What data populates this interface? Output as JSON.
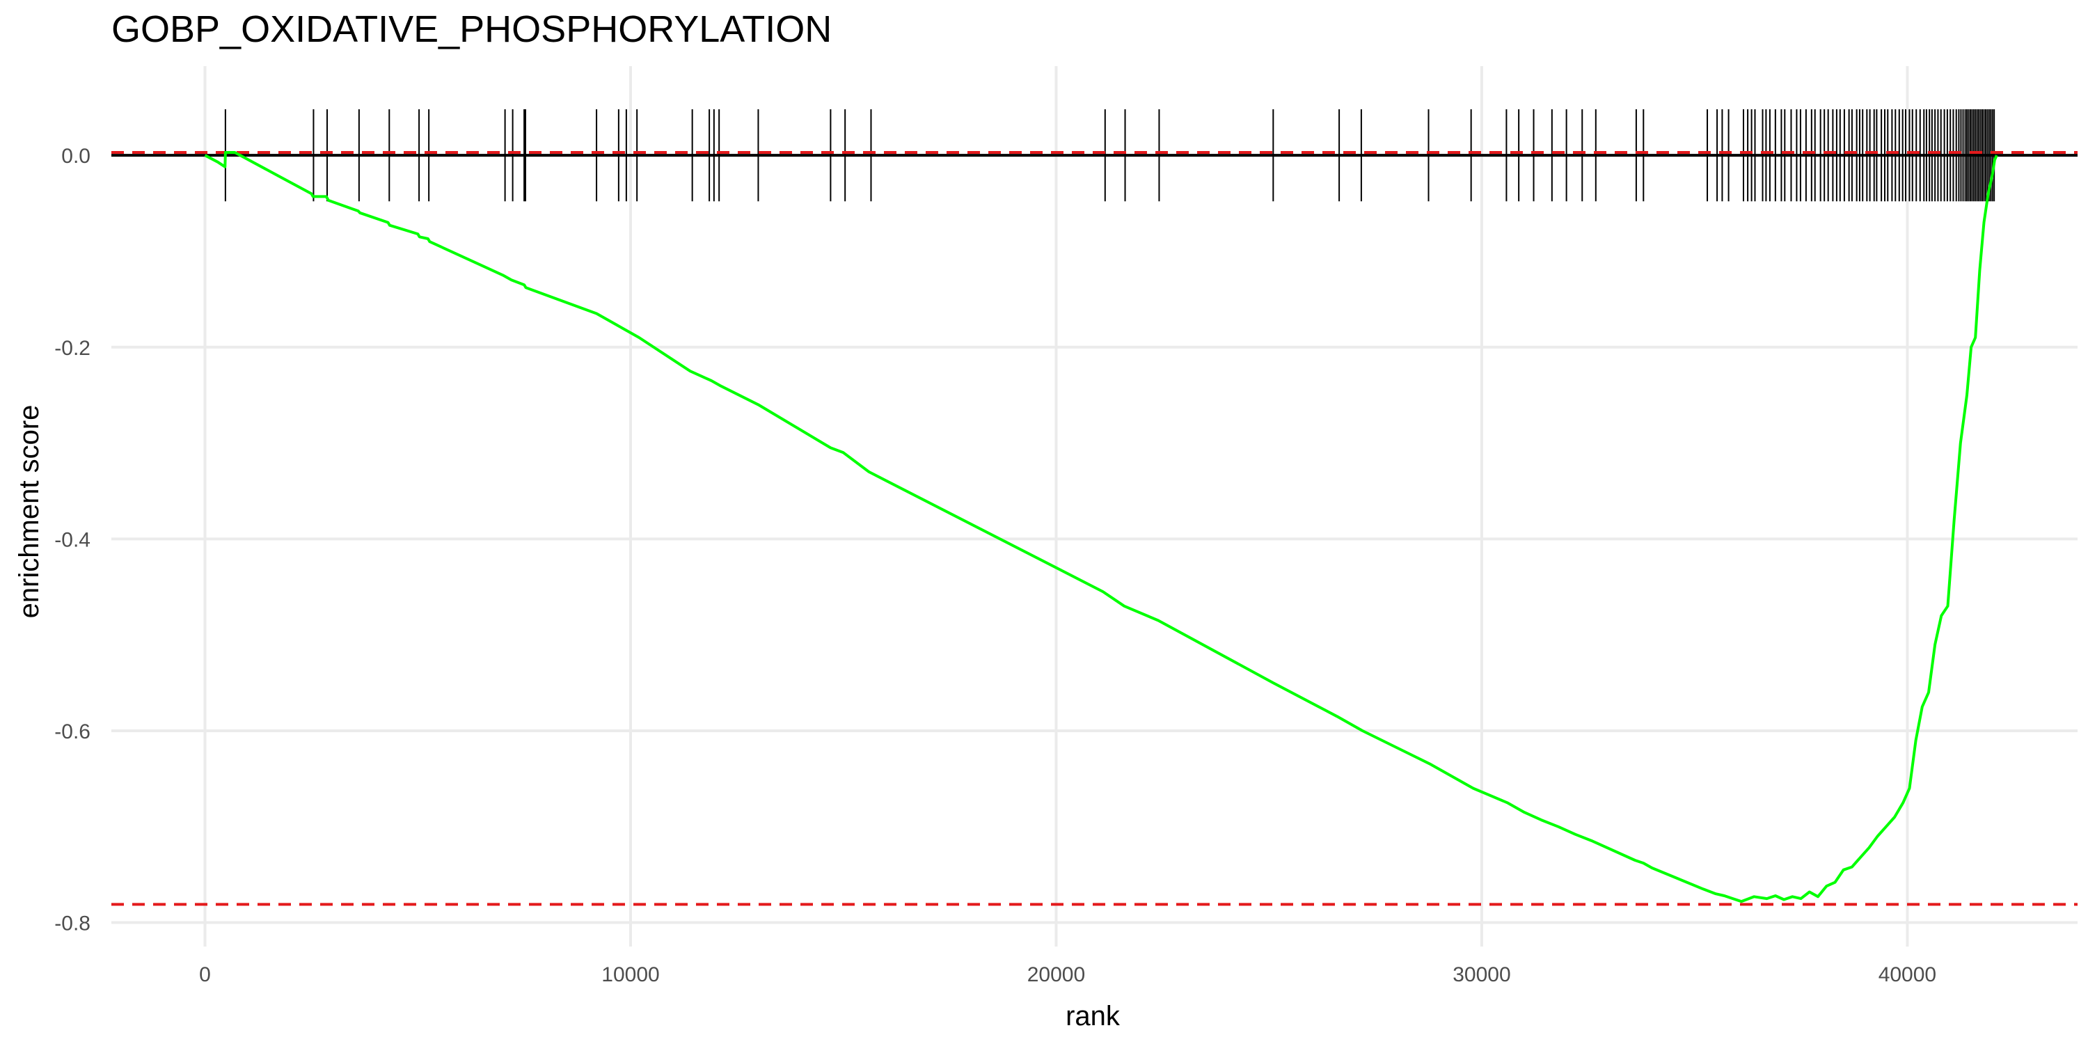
{
  "chart_data": {
    "type": "line",
    "title": "GOBP_OXIDATIVE_PHOSPHORYLATION",
    "xlabel": "rank",
    "ylabel": "enrichment score",
    "xlim": [
      -2200,
      44000
    ],
    "ylim": [
      -0.825,
      0.093
    ],
    "x_ticks": [
      0,
      10000,
      20000,
      30000,
      40000
    ],
    "x_tick_labels": [
      "0",
      "10000",
      "20000",
      "30000",
      "40000"
    ],
    "y_ticks": [
      0.0,
      -0.2,
      -0.4,
      -0.6,
      -0.8
    ],
    "y_tick_labels": [
      "0.0",
      "-0.2",
      "-0.4",
      "-0.6",
      "-0.8"
    ],
    "grid": true,
    "legend": "none",
    "series": [
      {
        "values_x": [
          0,
          300,
          470,
          480,
          700,
          2500,
          2540,
          2850,
          2900,
          3600,
          3640,
          4300,
          4340,
          5000,
          5040,
          5240,
          5280,
          7000,
          7200,
          7500,
          7540,
          9200,
          9800,
          10200,
          11400,
          11900,
          12100,
          13000,
          14700,
          15000,
          15600,
          21100,
          21600,
          22400,
          25100,
          26600,
          27200,
          28800,
          29800,
          30600,
          31000,
          31400,
          31800,
          32200,
          32600,
          33600,
          33800,
          34000,
          35200,
          35500,
          35700,
          35900,
          36100,
          36400,
          36700,
          36900,
          37100,
          37300,
          37500,
          37700,
          37900,
          38100,
          38300,
          38500,
          38700,
          38900,
          39100,
          39300,
          39500,
          39700,
          39900,
          40050,
          40200,
          40350,
          40500,
          40650,
          40800,
          40950,
          41100,
          41250,
          41400,
          41500,
          41600,
          41700,
          41800,
          41900,
          42000,
          42050,
          42100
        ],
        "values_y": [
          0.0,
          -0.007,
          -0.012,
          0.003,
          0.003,
          -0.04,
          -0.043,
          -0.043,
          -0.047,
          -0.058,
          -0.06,
          -0.07,
          -0.073,
          -0.082,
          -0.085,
          -0.087,
          -0.09,
          -0.125,
          -0.13,
          -0.135,
          -0.138,
          -0.165,
          -0.18,
          -0.19,
          -0.225,
          -0.235,
          -0.24,
          -0.26,
          -0.305,
          -0.31,
          -0.33,
          -0.455,
          -0.47,
          -0.485,
          -0.55,
          -0.585,
          -0.6,
          -0.635,
          -0.66,
          -0.675,
          -0.685,
          -0.693,
          -0.7,
          -0.708,
          -0.715,
          -0.735,
          -0.738,
          -0.743,
          -0.765,
          -0.77,
          -0.772,
          -0.775,
          -0.778,
          -0.773,
          -0.775,
          -0.772,
          -0.776,
          -0.773,
          -0.775,
          -0.768,
          -0.773,
          -0.762,
          -0.758,
          -0.745,
          -0.742,
          -0.732,
          -0.722,
          -0.71,
          -0.7,
          -0.69,
          -0.675,
          -0.66,
          -0.61,
          -0.575,
          -0.56,
          -0.51,
          -0.48,
          -0.47,
          -0.38,
          -0.3,
          -0.25,
          -0.2,
          -0.19,
          -0.12,
          -0.07,
          -0.04,
          -0.02,
          -0.005,
          0.0
        ]
      }
    ],
    "hit_ranks": [
      480,
      2550,
      2870,
      3620,
      4330,
      5030,
      5260,
      7050,
      7230,
      7500,
      7530,
      9200,
      9720,
      9900,
      10150,
      11450,
      11850,
      11960,
      12080,
      13000,
      14700,
      15040,
      15650,
      21150,
      21620,
      22420,
      25100,
      26650,
      27170,
      28750,
      29750,
      30580,
      30870,
      31220,
      31650,
      31990,
      32360,
      32680,
      33630,
      33800,
      35300,
      35530,
      35650,
      35800,
      36150,
      36250,
      36340,
      36420,
      36600,
      36680,
      36770,
      36900,
      37040,
      37120,
      37270,
      37400,
      37490,
      37620,
      37750,
      37830,
      37960,
      38050,
      38140,
      38250,
      38340,
      38420,
      38520,
      38630,
      38700,
      38810,
      38880,
      38950,
      39050,
      39120,
      39220,
      39280,
      39390,
      39470,
      39540,
      39640,
      39720,
      39810,
      39890,
      39960,
      40050,
      40120,
      40210,
      40300,
      40390,
      40450,
      40520,
      40580,
      40650,
      40720,
      40790,
      40870,
      40940,
      41010,
      41080,
      41150,
      41210,
      41260,
      41310,
      41360,
      41400,
      41440,
      41480,
      41520,
      41560,
      41600,
      41640,
      41680,
      41720,
      41760,
      41800,
      41840,
      41880,
      41920,
      41960,
      42000,
      42040
    ],
    "hit_segment": [
      -0.048,
      0.048
    ],
    "reference_lines": [
      0.003,
      -0.781
    ],
    "colors": {
      "es_line": "#00ff00",
      "reference_lines": "#e31a1c",
      "hits": "#000000",
      "zero_line": "#000000",
      "grid": "#ebebeb"
    }
  }
}
